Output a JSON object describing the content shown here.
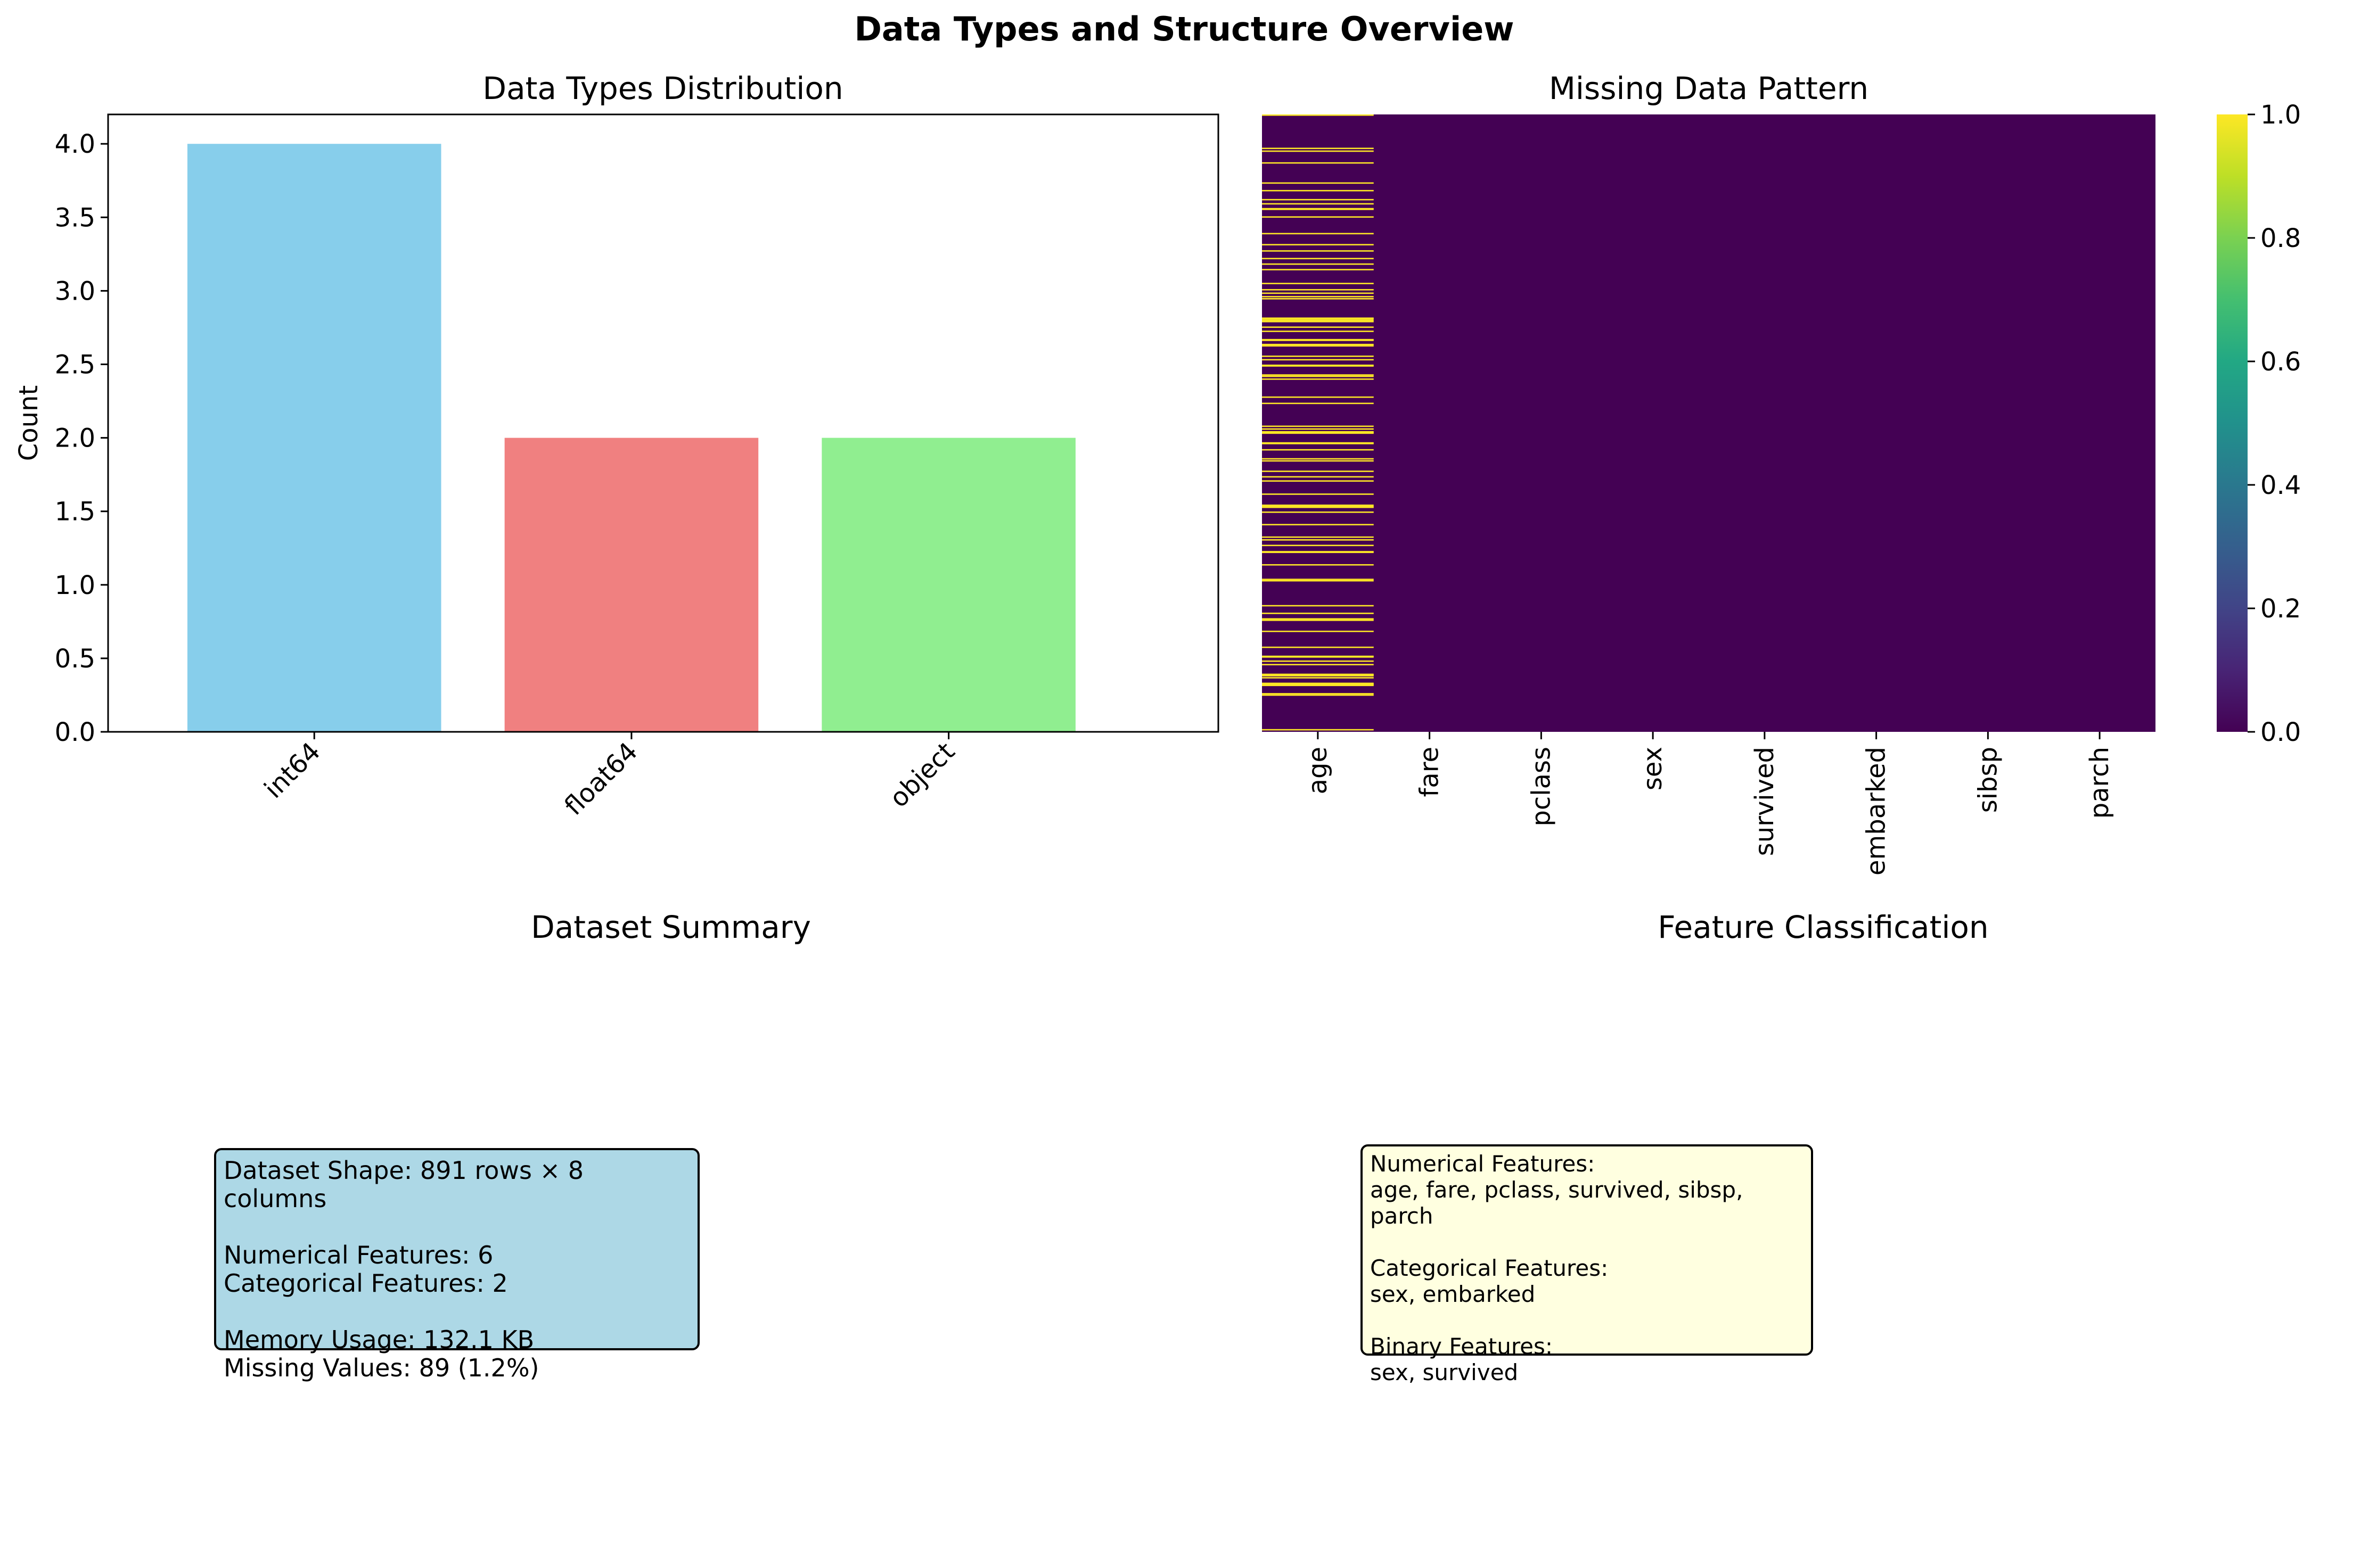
{
  "figure": {
    "suptitle": "Data Types and Structure Overview"
  },
  "chart_data": [
    {
      "type": "bar",
      "title": "Data Types Distribution",
      "xlabel": "",
      "ylabel": "Count",
      "categories": [
        "int64",
        "float64",
        "object"
      ],
      "values": [
        4,
        2,
        2
      ],
      "colors": [
        "#87ceeb",
        "#f08080",
        "#90ee90"
      ],
      "ylim": [
        0,
        4.2
      ],
      "yticks": [
        "0.0",
        "0.5",
        "1.0",
        "1.5",
        "2.0",
        "2.5",
        "3.0",
        "3.5",
        "4.0"
      ],
      "grid": false
    },
    {
      "type": "heatmap",
      "title": "Missing Data Pattern",
      "columns": [
        "age",
        "fare",
        "pclass",
        "sex",
        "survived",
        "embarked",
        "sibsp",
        "parch"
      ],
      "rows": 891,
      "missing_per_column": [
        89,
        0,
        0,
        0,
        0,
        0,
        0,
        0
      ],
      "colormap": "viridis",
      "colorbar_range": [
        0,
        1
      ],
      "colorbar_ticks": [
        "0.0",
        "0.2",
        "0.4",
        "0.6",
        "0.8",
        "1.0"
      ],
      "colors": {
        "present": "#440154",
        "missing": "#fde725"
      }
    }
  ],
  "summary": {
    "title": "Dataset Summary",
    "text": "Dataset Shape: 891 rows × 8 columns\n\nNumerical Features: 6\nCategorical Features: 2\n\nMemory Usage: 132.1 KB\nMissing Values: 89 (1.2%)"
  },
  "features": {
    "title": "Feature Classification",
    "text": "Numerical Features:\nage, fare, pclass, survived, sibsp, parch\n\nCategorical Features:\nsex, embarked\n\nBinary Features:\nsex, survived"
  }
}
